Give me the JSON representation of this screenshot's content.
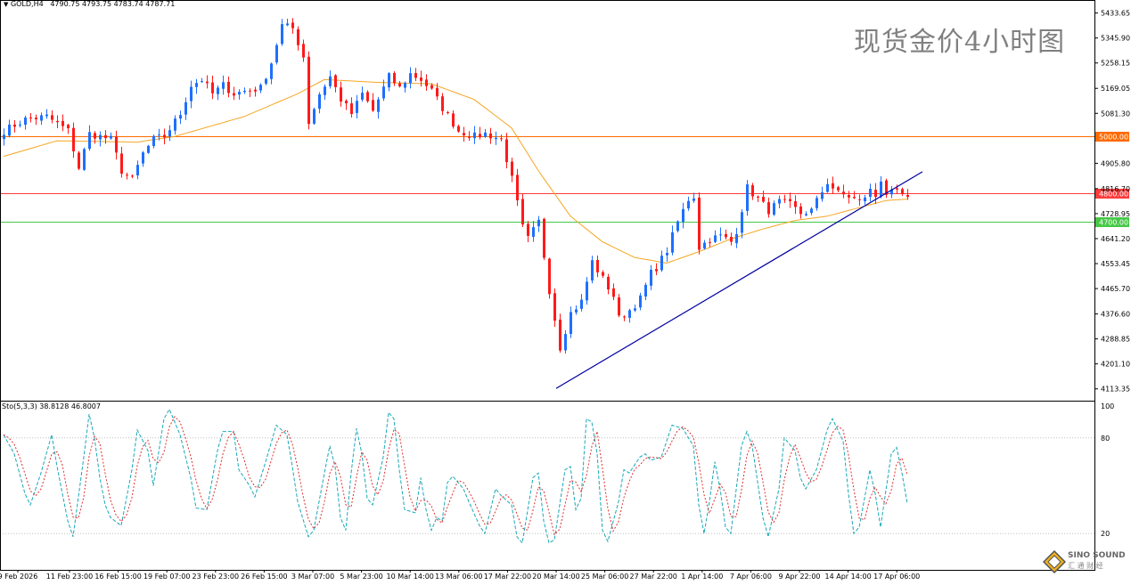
{
  "header": {
    "symbol_tf": "GOLD,H4",
    "ohlc": "4790.75 4793.75 4783.74 4787.71",
    "watermark": "现货金价4小时图"
  },
  "stochastic": {
    "label": "Sto(5,3,3) 38.8128 46.8007",
    "levels": [
      100,
      80,
      20
    ]
  },
  "logo": {
    "line1": "SINO SOUND",
    "line2": "汇 通 财 经",
    "icon": "diamond-logo-icon"
  },
  "colors": {
    "bull": "#1e6fff",
    "bear": "#ff1a1a",
    "ma": "#f5a623",
    "line_5000": "#ff6a00",
    "line_4800": "#ff3b3b",
    "line_4700": "#46c846",
    "trendline": "#0000a0",
    "stoch_main": "#1aa8b8",
    "stoch_signal": "#e03030"
  },
  "chart_data": [
    {
      "type": "candlestick",
      "symbol": "GOLD",
      "timeframe": "H4",
      "ylim": [
        4075,
        5470
      ],
      "y_ticks": [
        5433.65,
        5345.9,
        5258.15,
        5169.05,
        5081.3,
        4905.8,
        4816.7,
        4728.95,
        4641.2,
        4553.45,
        4465.7,
        4376.6,
        4288.85,
        4201.1,
        4113.35
      ],
      "x_ticks": [
        "9 Feb 2026",
        "11 Feb 23:00",
        "16 Feb 15:00",
        "19 Feb 07:00",
        "23 Feb 23:00",
        "26 Feb 15:00",
        "3 Mar 07:00",
        "5 Mar 23:00",
        "10 Mar 14:00",
        "13 Mar 06:00",
        "17 Mar 22:00",
        "20 Mar 14:00",
        "25 Mar 06:00",
        "27 Mar 22:00",
        "1 Apr 14:00",
        "7 Apr 06:00",
        "9 Apr 22:00",
        "14 Apr 14:00",
        "17 Apr 06:00"
      ],
      "horizontal_levels": [
        {
          "value": 5000.0,
          "label": "5000.00",
          "color": "#ff6a00"
        },
        {
          "value": 4800.0,
          "label": "4800.00",
          "color": "#ff3b3b"
        },
        {
          "value": 4700.0,
          "label": "4700.00",
          "color": "#46c846"
        }
      ],
      "trendline": {
        "start": [
          4115,
          4145
        ],
        "end": [
          4876,
          4882
        ]
      },
      "bar_count": 170,
      "close_anchors": [
        [
          0,
          5020
        ],
        [
          4,
          5060
        ],
        [
          8,
          5070
        ],
        [
          12,
          5020
        ],
        [
          14,
          4890
        ],
        [
          16,
          5010
        ],
        [
          20,
          4990
        ],
        [
          22,
          4880
        ],
        [
          24,
          4850
        ],
        [
          26,
          4940
        ],
        [
          28,
          4990
        ],
        [
          30,
          5000
        ],
        [
          33,
          5080
        ],
        [
          35,
          5180
        ],
        [
          37,
          5200
        ],
        [
          39,
          5150
        ],
        [
          41,
          5180
        ],
        [
          43,
          5150
        ],
        [
          45,
          5160
        ],
        [
          48,
          5170
        ],
        [
          50,
          5260
        ],
        [
          52,
          5390
        ],
        [
          54,
          5380
        ],
        [
          56,
          5280
        ],
        [
          57,
          5050
        ],
        [
          59,
          5150
        ],
        [
          61,
          5210
        ],
        [
          63,
          5130
        ],
        [
          65,
          5080
        ],
        [
          67,
          5150
        ],
        [
          69,
          5090
        ],
        [
          70,
          5130
        ],
        [
          72,
          5210
        ],
        [
          74,
          5170
        ],
        [
          76,
          5220
        ],
        [
          78,
          5200
        ],
        [
          80,
          5160
        ],
        [
          82,
          5100
        ],
        [
          85,
          5020
        ],
        [
          88,
          5000
        ],
        [
          90,
          5010
        ],
        [
          93,
          4990
        ],
        [
          95,
          4850
        ],
        [
          97,
          4680
        ],
        [
          98,
          4640
        ],
        [
          100,
          4700
        ],
        [
          102,
          4460
        ],
        [
          104,
          4260
        ],
        [
          106,
          4380
        ],
        [
          108,
          4420
        ],
        [
          110,
          4560
        ],
        [
          112,
          4500
        ],
        [
          114,
          4440
        ],
        [
          115,
          4360
        ],
        [
          117,
          4390
        ],
        [
          119,
          4430
        ],
        [
          121,
          4520
        ],
        [
          122,
          4540
        ],
        [
          124,
          4600
        ],
        [
          126,
          4700
        ],
        [
          128,
          4780
        ],
        [
          129,
          4790
        ],
        [
          130,
          4610
        ],
        [
          132,
          4640
        ],
        [
          134,
          4650
        ],
        [
          136,
          4630
        ],
        [
          137,
          4670
        ],
        [
          139,
          4820
        ],
        [
          141,
          4780
        ],
        [
          143,
          4740
        ],
        [
          145,
          4770
        ],
        [
          147,
          4760
        ],
        [
          149,
          4730
        ],
        [
          151,
          4740
        ],
        [
          154,
          4840
        ],
        [
          156,
          4800
        ],
        [
          158,
          4790
        ],
        [
          160,
          4770
        ],
        [
          162,
          4810
        ],
        [
          163,
          4790
        ],
        [
          164,
          4850
        ],
        [
          165,
          4800
        ],
        [
          167,
          4800
        ],
        [
          169,
          4787.71
        ]
      ],
      "ma_anchors": [
        [
          0,
          4930
        ],
        [
          10,
          4985
        ],
        [
          25,
          4980
        ],
        [
          32,
          5000
        ],
        [
          45,
          5070
        ],
        [
          55,
          5150
        ],
        [
          60,
          5200
        ],
        [
          70,
          5190
        ],
        [
          80,
          5185
        ],
        [
          88,
          5130
        ],
        [
          95,
          5030
        ],
        [
          100,
          4880
        ],
        [
          106,
          4720
        ],
        [
          112,
          4630
        ],
        [
          118,
          4575
        ],
        [
          124,
          4555
        ],
        [
          130,
          4595
        ],
        [
          136,
          4640
        ],
        [
          142,
          4675
        ],
        [
          148,
          4705
        ],
        [
          154,
          4720
        ],
        [
          160,
          4750
        ],
        [
          165,
          4775
        ],
        [
          169,
          4780
        ]
      ]
    },
    {
      "type": "line",
      "title": "Sto(5,3,3)",
      "main_value": 38.8128,
      "signal_value": 46.8007,
      "ylim": [
        0,
        100
      ],
      "levels": [
        100,
        80,
        20
      ],
      "anchors": [
        [
          0,
          82
        ],
        [
          2,
          70
        ],
        [
          4,
          45
        ],
        [
          5,
          38
        ],
        [
          7,
          58
        ],
        [
          9,
          82
        ],
        [
          10,
          62
        ],
        [
          12,
          28
        ],
        [
          13,
          18
        ],
        [
          15,
          68
        ],
        [
          16,
          95
        ],
        [
          17,
          80
        ],
        [
          18,
          55
        ],
        [
          19,
          38
        ],
        [
          20,
          30
        ],
        [
          22,
          25
        ],
        [
          24,
          60
        ],
        [
          25,
          85
        ],
        [
          27,
          72
        ],
        [
          28,
          50
        ],
        [
          30,
          92
        ],
        [
          31,
          98
        ],
        [
          33,
          82
        ],
        [
          35,
          55
        ],
        [
          36,
          36
        ],
        [
          38,
          35
        ],
        [
          40,
          72
        ],
        [
          41,
          84
        ],
        [
          43,
          84
        ],
        [
          44,
          60
        ],
        [
          46,
          50
        ],
        [
          47,
          43
        ],
        [
          49,
          65
        ],
        [
          51,
          88
        ],
        [
          53,
          82
        ],
        [
          54,
          62
        ],
        [
          55,
          40
        ],
        [
          57,
          18
        ],
        [
          58,
          22
        ],
        [
          60,
          58
        ],
        [
          61,
          75
        ],
        [
          62,
          62
        ],
        [
          63,
          30
        ],
        [
          64,
          22
        ],
        [
          65,
          58
        ],
        [
          66,
          86
        ],
        [
          67,
          70
        ],
        [
          68,
          42
        ],
        [
          69,
          38
        ],
        [
          71,
          68
        ],
        [
          72,
          96
        ],
        [
          73,
          92
        ],
        [
          74,
          60
        ],
        [
          75,
          35
        ],
        [
          77,
          33
        ],
        [
          78,
          55
        ],
        [
          79,
          35
        ],
        [
          80,
          22
        ],
        [
          81,
          30
        ],
        [
          82,
          28
        ],
        [
          83,
          52
        ],
        [
          84,
          56
        ],
        [
          86,
          48
        ],
        [
          87,
          40
        ],
        [
          89,
          25
        ],
        [
          90,
          20
        ],
        [
          92,
          48
        ],
        [
          93,
          44
        ],
        [
          95,
          38
        ],
        [
          96,
          18
        ],
        [
          97,
          14
        ],
        [
          99,
          55
        ],
        [
          100,
          58
        ],
        [
          101,
          28
        ],
        [
          102,
          14
        ],
        [
          103,
          16
        ],
        [
          105,
          60
        ],
        [
          106,
          62
        ],
        [
          107,
          35
        ],
        [
          108,
          42
        ],
        [
          109,
          92
        ],
        [
          110,
          90
        ],
        [
          111,
          70
        ],
        [
          112,
          22
        ],
        [
          113,
          15
        ],
        [
          115,
          40
        ],
        [
          116,
          60
        ],
        [
          117,
          58
        ],
        [
          119,
          68
        ],
        [
          120,
          70
        ],
        [
          121,
          66
        ],
        [
          123,
          68
        ],
        [
          125,
          88
        ],
        [
          127,
          86
        ],
        [
          129,
          75
        ],
        [
          130,
          38
        ],
        [
          131,
          20
        ],
        [
          132,
          40
        ],
        [
          133,
          65
        ],
        [
          134,
          48
        ],
        [
          135,
          24
        ],
        [
          136,
          20
        ],
        [
          138,
          75
        ],
        [
          139,
          84
        ],
        [
          140,
          75
        ],
        [
          142,
          30
        ],
        [
          143,
          18
        ],
        [
          145,
          48
        ],
        [
          146,
          80
        ],
        [
          148,
          72
        ],
        [
          149,
          55
        ],
        [
          150,
          48
        ],
        [
          152,
          60
        ],
        [
          154,
          85
        ],
        [
          155,
          92
        ],
        [
          157,
          78
        ],
        [
          158,
          45
        ],
        [
          159,
          20
        ],
        [
          160,
          24
        ],
        [
          162,
          60
        ],
        [
          163,
          45
        ],
        [
          164,
          24
        ],
        [
          166,
          70
        ],
        [
          167,
          74
        ],
        [
          168,
          58
        ],
        [
          169,
          38.81
        ]
      ]
    }
  ]
}
